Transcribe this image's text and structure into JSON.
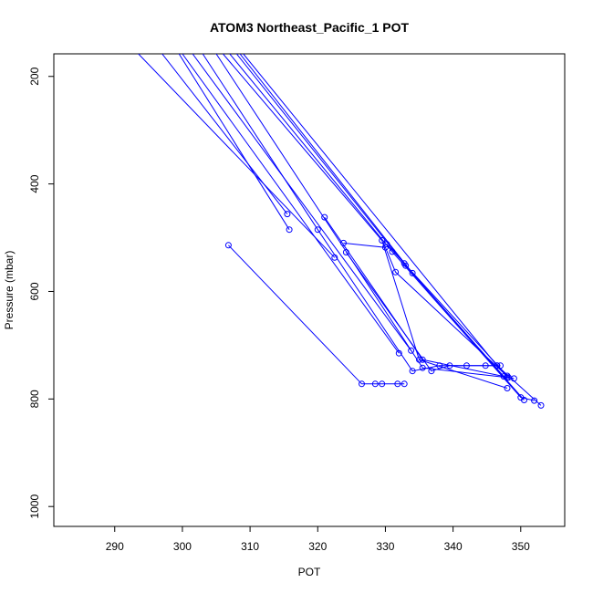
{
  "chart_data": {
    "type": "line",
    "title": "ATOM3 Northeast_Pacific_1 POT",
    "xlabel": "POT",
    "ylabel": "Pressure (mbar)",
    "xlim": [
      281,
      356.5
    ],
    "ylim": [
      1037,
      158
    ],
    "y_reversed": true,
    "x_ticks": [
      290,
      300,
      310,
      320,
      330,
      340,
      350
    ],
    "y_ticks": [
      200,
      400,
      600,
      800,
      1000
    ],
    "grid": false,
    "legend": "none",
    "series_color": "#0000ff",
    "markers": "open-circle",
    "series": [
      {
        "points": [
          [
            293.5,
            158
          ],
          [
            322.5,
            537
          ]
        ]
      },
      {
        "points": [
          [
            297,
            158
          ],
          [
            315.5,
            456
          ]
        ]
      },
      {
        "points": [
          [
            299.5,
            158
          ],
          [
            315.8,
            485
          ]
        ]
      },
      {
        "points": [
          [
            300,
            158
          ],
          [
            332,
            715
          ]
        ]
      },
      {
        "points": [
          [
            301.5,
            158
          ],
          [
            333.8,
            710
          ]
        ]
      },
      {
        "points": [
          [
            303,
            158
          ],
          [
            320,
            485
          ],
          [
            334,
            748
          ],
          [
            338,
            738
          ],
          [
            342,
            738
          ],
          [
            347,
            738
          ]
        ]
      },
      {
        "points": [
          [
            305,
            158
          ],
          [
            335.5,
            742
          ],
          [
            348,
            760
          ]
        ]
      },
      {
        "points": [
          [
            306,
            158
          ],
          [
            329.5,
            505
          ],
          [
            335,
            727
          ],
          [
            348,
            780
          ]
        ]
      },
      {
        "points": [
          [
            307,
            158
          ],
          [
            331,
            526
          ],
          [
            350,
            797
          ],
          [
            352,
            803
          ]
        ]
      },
      {
        "points": [
          [
            308,
            158
          ],
          [
            333,
            552
          ],
          [
            347.5,
            758
          ]
        ]
      },
      {
        "points": [
          [
            308.5,
            158
          ],
          [
            334,
            566
          ],
          [
            350.5,
            802
          ]
        ]
      },
      {
        "points": [
          [
            309,
            158
          ],
          [
            346.5,
            738
          ],
          [
            353,
            812
          ]
        ]
      },
      {
        "points": [
          [
            306.8,
            514
          ],
          [
            326.5,
            772
          ],
          [
            328.5,
            772
          ],
          [
            329.5,
            772
          ],
          [
            331.8,
            772
          ],
          [
            332.8,
            772
          ]
        ]
      },
      {
        "points": [
          [
            321,
            462
          ],
          [
            335.5,
            727
          ],
          [
            349,
            762
          ]
        ]
      },
      {
        "points": [
          [
            323.8,
            510
          ],
          [
            330,
            518
          ],
          [
            331.5,
            564
          ],
          [
            348.2,
            760
          ]
        ]
      },
      {
        "points": [
          [
            324.2,
            527
          ],
          [
            336.8,
            748
          ],
          [
            339.5,
            738
          ],
          [
            344.8,
            738
          ],
          [
            346.5,
            738
          ]
        ]
      },
      {
        "points": [
          [
            330.2,
            512
          ],
          [
            332.8,
            548
          ],
          [
            348,
            757
          ]
        ]
      }
    ]
  }
}
